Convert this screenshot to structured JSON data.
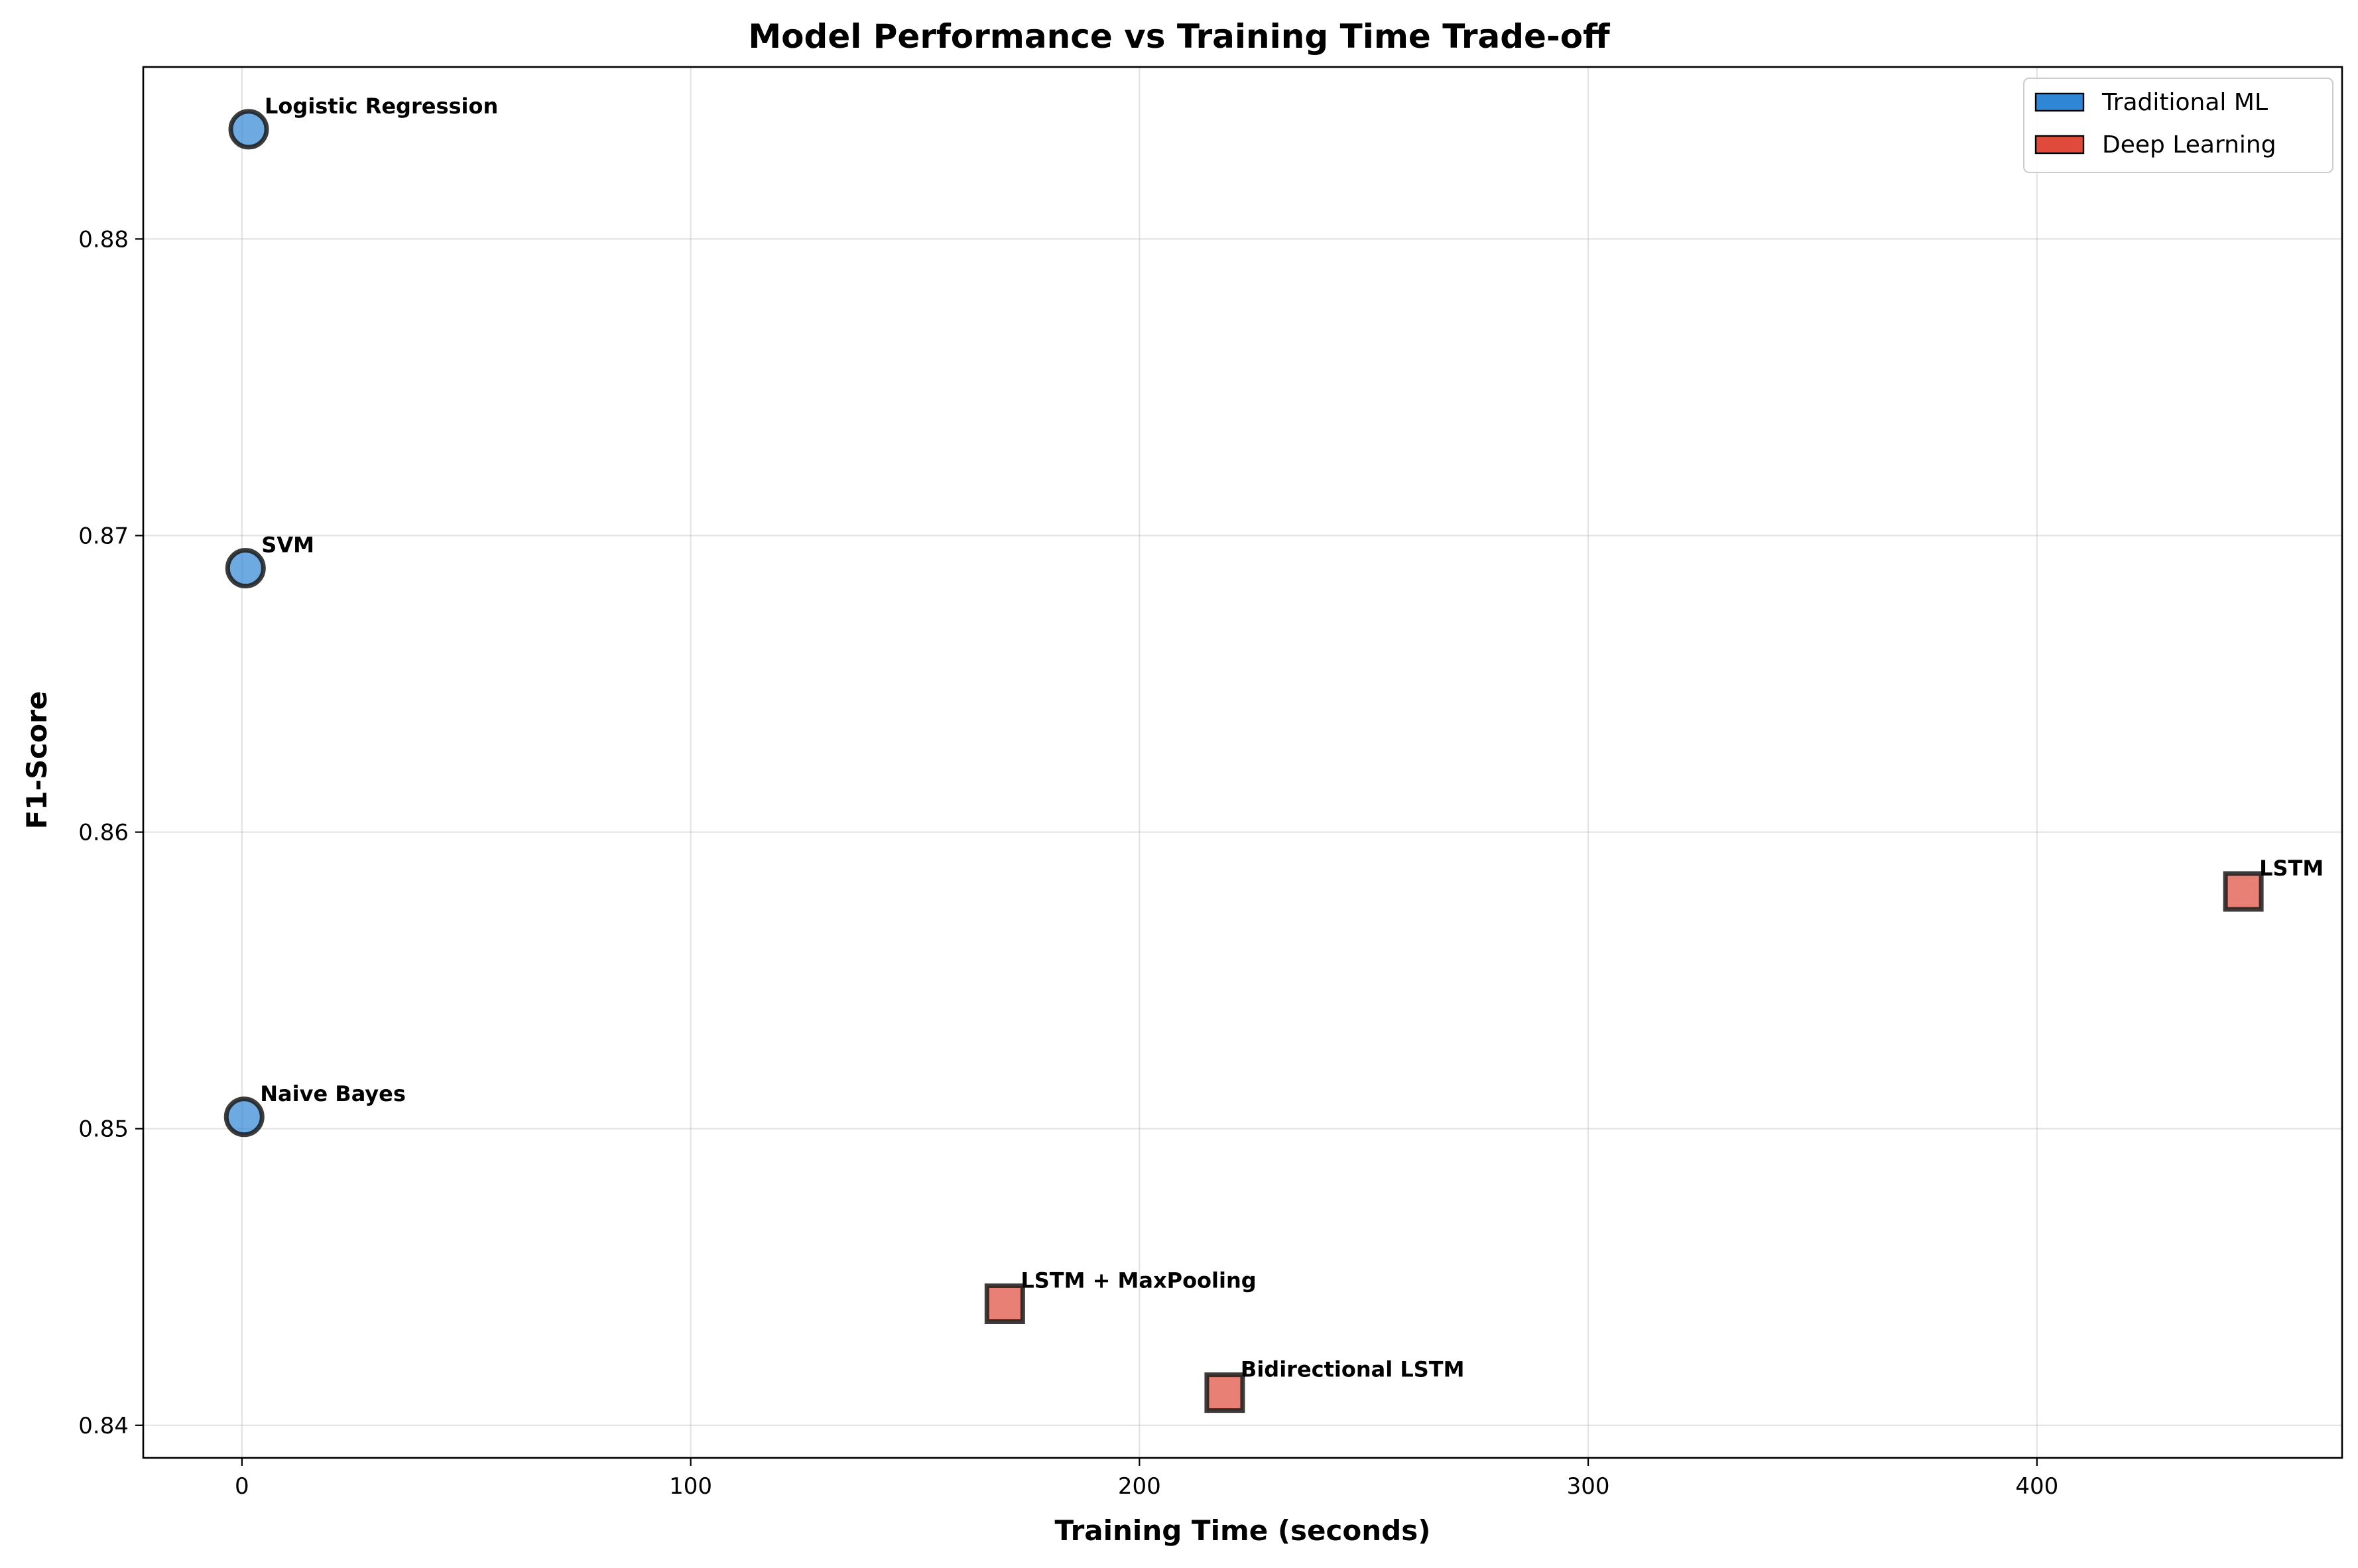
{
  "chart_data": {
    "type": "scatter",
    "title": "Model Performance vs Training Time Trade-off",
    "xlabel": "Training Time (seconds)",
    "ylabel": "F1-Score",
    "xlim": [
      -22,
      468
    ],
    "ylim": [
      0.8389,
      0.8858
    ],
    "xticks": [
      0,
      100,
      200,
      300,
      400
    ],
    "xtick_labels": [
      "0",
      "100",
      "200",
      "300",
      "400"
    ],
    "yticks": [
      0.84,
      0.85,
      0.86,
      0.87,
      0.88
    ],
    "ytick_labels": [
      "0.84",
      "0.85",
      "0.86",
      "0.87",
      "0.88"
    ],
    "grid": true,
    "legend_position": "top-right",
    "series": [
      {
        "name": "Traditional ML",
        "color": "#2e86d4",
        "marker": "circle",
        "points": [
          {
            "label": "Logistic Regression",
            "x": 1.5,
            "y": 0.8837
          },
          {
            "label": "SVM",
            "x": 0.8,
            "y": 0.8689
          },
          {
            "label": "Naive Bayes",
            "x": 0.5,
            "y": 0.8504
          }
        ]
      },
      {
        "name": "Deep Learning",
        "color": "#e04a3a",
        "marker": "square",
        "points": [
          {
            "label": "LSTM",
            "x": 446,
            "y": 0.858
          },
          {
            "label": "LSTM + MaxPooling",
            "x": 170,
            "y": 0.8441
          },
          {
            "label": "Bidirectional LSTM",
            "x": 219,
            "y": 0.8411
          }
        ]
      }
    ]
  }
}
